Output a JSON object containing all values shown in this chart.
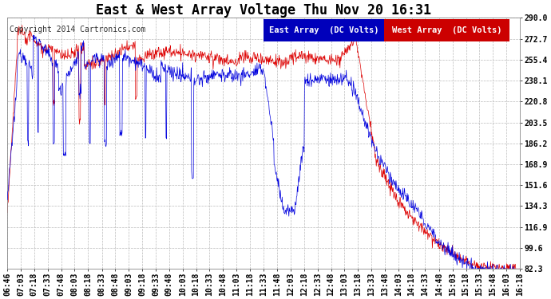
{
  "title": "East & West Array Voltage Thu Nov 20 16:31",
  "copyright": "Copyright 2014 Cartronics.com",
  "legend_east": "East Array  (DC Volts)",
  "legend_west": "West Array  (DC Volts)",
  "east_color": "#0000dd",
  "west_color": "#dd0000",
  "legend_east_bg": "#0000cc",
  "legend_west_bg": "#cc0000",
  "bg_color": "#ffffff",
  "plot_bg_color": "#ffffff",
  "grid_color": "#bbbbbb",
  "yticks": [
    82.3,
    99.6,
    116.9,
    134.3,
    151.6,
    168.9,
    186.2,
    203.5,
    220.8,
    238.1,
    255.4,
    272.7,
    290.0
  ],
  "ymin": 82.3,
  "ymax": 290.0,
  "x_tick_labels": [
    "06:46",
    "07:03",
    "07:18",
    "07:33",
    "07:48",
    "08:03",
    "08:18",
    "08:33",
    "08:48",
    "09:03",
    "09:18",
    "09:33",
    "09:48",
    "10:03",
    "10:18",
    "10:33",
    "10:48",
    "11:03",
    "11:18",
    "11:33",
    "11:48",
    "12:03",
    "12:18",
    "12:33",
    "12:48",
    "13:03",
    "13:18",
    "13:33",
    "13:48",
    "14:03",
    "14:18",
    "14:33",
    "14:48",
    "15:03",
    "15:18",
    "15:33",
    "15:48",
    "16:03",
    "16:18"
  ],
  "title_fontsize": 12,
  "copyright_fontsize": 7,
  "tick_fontsize": 7,
  "legend_fontsize": 7.5
}
